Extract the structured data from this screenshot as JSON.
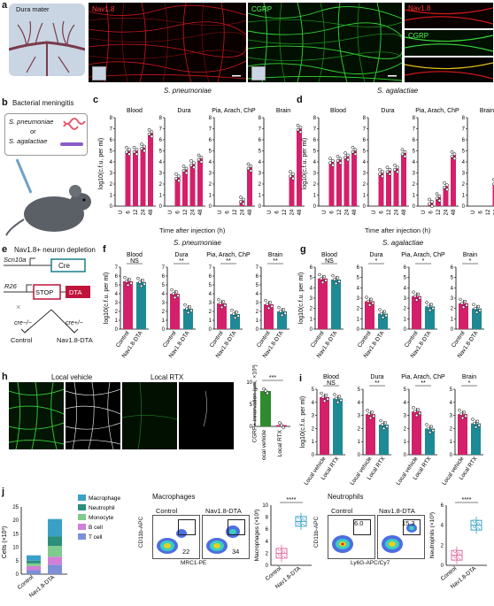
{
  "panels": [
    "a",
    "b",
    "c",
    "d",
    "e",
    "f",
    "g",
    "h",
    "i",
    "j"
  ],
  "a": {
    "title": "Dura mater",
    "img1_label": "Nav1.8",
    "img2_label": "CGRP",
    "img3_labels": [
      "Nav1.8",
      "CGRP"
    ],
    "colors": {
      "nav": "#e0201c",
      "cgrp": "#2fd12f"
    }
  },
  "b": {
    "title": "Bacterial meningitis",
    "species1": "S. pneumoniae",
    "or": "or",
    "species2": "S. agalactiae"
  },
  "c": {
    "title": "S. pneumoniae",
    "ylabel": "log10(c.f.u. per ml)",
    "subtitles": [
      "Blood",
      "Dura",
      "Pia, Arach, ChP",
      "Brain"
    ],
    "xlabel": "Time after injection (h)",
    "xticks": [
      "U",
      "6",
      "12",
      "24",
      "48"
    ]
  },
  "d": {
    "title": "S. agalactiae",
    "subtitles": [
      "Blood",
      "Dura",
      "Pia, Arach, ChP",
      "Brain"
    ],
    "xlabel": "Time after injection (h)",
    "xticks": [
      "U",
      "6",
      "12",
      "24",
      "48"
    ]
  },
  "e": {
    "title": "Nav1.8+ neuron depletion",
    "gene1": "Scn10a",
    "cre": "Cre",
    "gene2": "R26",
    "stop": "STOP",
    "dta": "DTA",
    "cross": "×",
    "cre_neg": "cre−/−",
    "cre_pos": "cre+/−",
    "control": "Control",
    "dta_label": "Nav1.8-DTA"
  },
  "f": {
    "title": "S. pneumoniae",
    "subtitles": [
      "Blood",
      "Dura",
      "Pia, Arach, ChP",
      "Brain"
    ],
    "sig": [
      "NS",
      "**",
      "**",
      "**"
    ],
    "xticks": [
      "Control",
      "Nav1.8-DTA"
    ]
  },
  "g": {
    "title": "S. agalactiae",
    "subtitles": [
      "Blood",
      "Dura",
      "Pia, Arach, ChP",
      "Brain"
    ],
    "sig": [
      "NS",
      "*",
      "*",
      "*"
    ],
    "xticks": [
      "Control",
      "Nav1.8-DTA"
    ]
  },
  "h": {
    "label_vehicle": "Local vehicle",
    "label_rtx": "Local RTX",
    "ylabel": "CGRP+ innervation (μm, ×10³)",
    "sig": "***",
    "xticks": [
      "Local vehicle",
      "Local RTX"
    ]
  },
  "i": {
    "subtitles": [
      "Blood",
      "Dura",
      "Pia, Arach, ChP",
      "Brain"
    ],
    "sig": [
      "NS",
      "**",
      "**",
      "*"
    ],
    "xticks": [
      "Local vehicle",
      "Local RTX"
    ]
  },
  "j": {
    "ylabel": "Cells (×10³)",
    "legend": [
      "Macrophage",
      "Neutrophil",
      "Monocyte",
      "B cell",
      "T cell"
    ],
    "legend_colors": [
      "#3aa0c8",
      "#2c8f7a",
      "#7ecb8e",
      "#d37fd8",
      "#7d8fd6"
    ],
    "xticks": [
      "Control",
      "Nav1.8-DTA"
    ],
    "macro_title": "Macrophages",
    "neut_title": "Neutrophils",
    "flow_control": "Control",
    "flow_dta": "Nav1.8-DTA",
    "macro_axis_y": "CD11b-APC",
    "macro_axis_x": "MRC1-PE",
    "macro_vals": [
      "22",
      "34"
    ],
    "neut_axis_y": "CD11b-APC",
    "neut_axis_x": "Ly6G-APC/Cy7",
    "neut_vals": [
      "6.0",
      "15.3"
    ],
    "macro_ylabel": "Macrophages (×10³)",
    "neut_ylabel": "Neutrophils (×10³)",
    "sig": "****"
  },
  "chart_data": [
    {
      "type": "bar",
      "panel": "c",
      "title": "S. pneumoniae",
      "categories": [
        "U",
        "6",
        "12",
        "24",
        "48"
      ],
      "ylim": [
        0,
        8
      ],
      "series": [
        {
          "name": "Blood",
          "values": [
            0,
            5.0,
            5.0,
            5.3,
            6.6
          ]
        },
        {
          "name": "Dura",
          "values": [
            0,
            2.6,
            3.3,
            3.8,
            4.3
          ]
        },
        {
          "name": "Pia, Arach, ChP",
          "values": [
            0,
            0,
            0,
            0.5,
            3.5
          ]
        },
        {
          "name": "Brain",
          "values": [
            0,
            0,
            0,
            2.8,
            7.0
          ]
        }
      ]
    },
    {
      "type": "bar",
      "panel": "d",
      "title": "S. agalactiae",
      "categories": [
        "U",
        "6",
        "12",
        "24",
        "48"
      ],
      "ylim": [
        0,
        8
      ],
      "series": [
        {
          "name": "Blood",
          "values": [
            0,
            4.0,
            4.2,
            4.5,
            5.0
          ]
        },
        {
          "name": "Dura",
          "values": [
            0,
            3.0,
            3.2,
            3.4,
            4.8
          ]
        },
        {
          "name": "Pia, Arach, ChP",
          "values": [
            0,
            0.3,
            0.8,
            1.8,
            4.6
          ]
        },
        {
          "name": "Brain",
          "values": [
            0,
            0,
            0,
            2.1,
            4.6
          ]
        }
      ]
    },
    {
      "type": "bar",
      "panel": "f",
      "title": "S. pneumoniae",
      "categories": [
        "Control",
        "Nav1.8-DTA"
      ],
      "series": [
        {
          "name": "Blood",
          "values": [
            5.4,
            5.3
          ]
        },
        {
          "name": "Dura",
          "values": [
            4.0,
            2.3
          ]
        },
        {
          "name": "Pia, Arach, ChP",
          "values": [
            2.9,
            1.7
          ]
        },
        {
          "name": "Brain",
          "values": [
            2.8,
            2.0
          ]
        }
      ]
    },
    {
      "type": "bar",
      "panel": "g",
      "title": "S. agalactiae",
      "categories": [
        "Control",
        "Nav1.8-DTA"
      ],
      "series": [
        {
          "name": "Blood",
          "values": [
            4.9,
            4.8
          ]
        },
        {
          "name": "Dura",
          "values": [
            2.7,
            1.5
          ]
        },
        {
          "name": "Pia, Arach, ChP",
          "values": [
            3.2,
            2.2
          ]
        },
        {
          "name": "Brain",
          "values": [
            2.5,
            2.0
          ]
        }
      ]
    },
    {
      "type": "bar",
      "panel": "h",
      "categories": [
        "Local vehicle",
        "Local RTX"
      ],
      "values": [
        8.0,
        0.3
      ],
      "ylim": [
        0,
        10
      ]
    },
    {
      "type": "bar",
      "panel": "i",
      "categories": [
        "Local vehicle",
        "Local RTX"
      ],
      "series": [
        {
          "name": "Blood",
          "values": [
            4.4,
            4.3
          ]
        },
        {
          "name": "Dura",
          "values": [
            3.1,
            2.3
          ]
        },
        {
          "name": "Pia, Arach, ChP",
          "values": [
            3.3,
            2.0
          ]
        },
        {
          "name": "Brain",
          "values": [
            3.1,
            2.4
          ]
        }
      ]
    },
    {
      "type": "bar",
      "panel": "j-stack",
      "categories": [
        "Control",
        "Nav1.8-DTA"
      ],
      "ylim": [
        0,
        25
      ],
      "series": [
        {
          "name": "T cell",
          "values": [
            1.5,
            3.5
          ]
        },
        {
          "name": "B cell",
          "values": [
            1.5,
            3.0
          ]
        },
        {
          "name": "Monocyte",
          "values": [
            1.0,
            4.0
          ]
        },
        {
          "name": "Neutrophil",
          "values": [
            1.0,
            3.5
          ]
        },
        {
          "name": "Macrophage",
          "values": [
            2.0,
            6.5
          ]
        }
      ]
    },
    {
      "type": "box",
      "panel": "j-macro",
      "categories": [
        "Control",
        "Nav1.8-DTA"
      ],
      "values": [
        2.0,
        7.3
      ],
      "ylim": [
        0,
        10
      ]
    },
    {
      "type": "box",
      "panel": "j-neut",
      "categories": [
        "Control",
        "Nav1.8-DTA"
      ],
      "values": [
        1.0,
        4.0
      ],
      "ylim": [
        0,
        6
      ]
    }
  ]
}
